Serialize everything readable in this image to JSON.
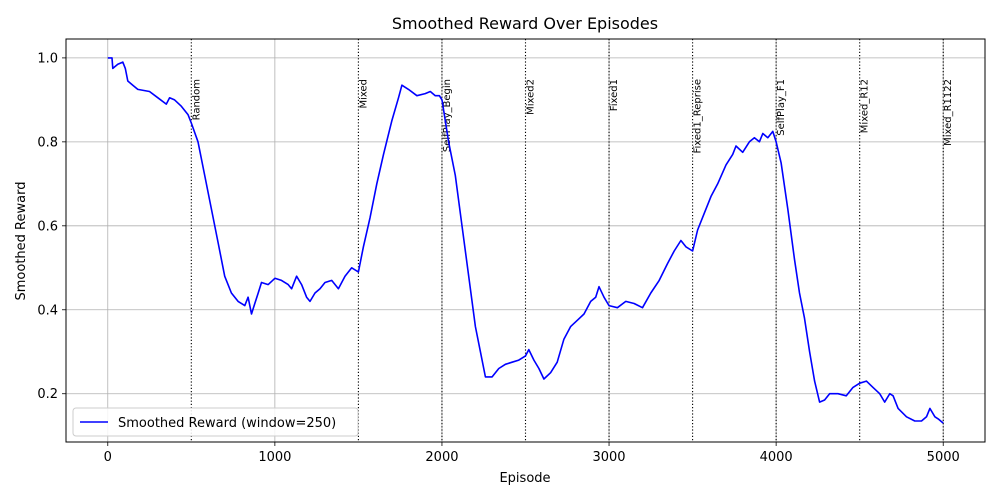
{
  "chart_data": {
    "type": "line",
    "title": "Smoothed Reward Over Episodes",
    "xlabel": "Episode",
    "ylabel": "Smoothed Reward",
    "xlim": [
      -250,
      5250
    ],
    "ylim": [
      0.085,
      1.045
    ],
    "xticks": [
      0,
      1000,
      2000,
      3000,
      4000,
      5000
    ],
    "xtick_labels": [
      "0",
      "1000",
      "2000",
      "3000",
      "4000",
      "5000"
    ],
    "yticks": [
      0.2,
      0.4,
      0.6,
      0.8,
      1.0
    ],
    "ytick_labels": [
      "0.2",
      "0.4",
      "0.6",
      "0.8",
      "1.0"
    ],
    "grid": true,
    "legend": {
      "position": "lower-left",
      "entries": [
        "Smoothed Reward (window=250)"
      ]
    },
    "series": [
      {
        "name": "Smoothed Reward (window=250)",
        "color": "#0000ff",
        "points": [
          [
            0,
            1.0
          ],
          [
            25,
            1.0
          ],
          [
            30,
            0.975
          ],
          [
            60,
            0.985
          ],
          [
            90,
            0.99
          ],
          [
            105,
            0.975
          ],
          [
            120,
            0.945
          ],
          [
            150,
            0.935
          ],
          [
            180,
            0.925
          ],
          [
            250,
            0.92
          ],
          [
            300,
            0.905
          ],
          [
            350,
            0.89
          ],
          [
            370,
            0.905
          ],
          [
            400,
            0.9
          ],
          [
            440,
            0.885
          ],
          [
            480,
            0.865
          ],
          [
            500,
            0.845
          ],
          [
            540,
            0.8
          ],
          [
            580,
            0.72
          ],
          [
            620,
            0.64
          ],
          [
            660,
            0.56
          ],
          [
            700,
            0.48
          ],
          [
            740,
            0.44
          ],
          [
            780,
            0.42
          ],
          [
            820,
            0.41
          ],
          [
            840,
            0.43
          ],
          [
            860,
            0.39
          ],
          [
            880,
            0.415
          ],
          [
            900,
            0.44
          ],
          [
            920,
            0.465
          ],
          [
            960,
            0.46
          ],
          [
            1000,
            0.475
          ],
          [
            1040,
            0.47
          ],
          [
            1080,
            0.46
          ],
          [
            1100,
            0.45
          ],
          [
            1130,
            0.48
          ],
          [
            1160,
            0.46
          ],
          [
            1190,
            0.43
          ],
          [
            1210,
            0.42
          ],
          [
            1240,
            0.44
          ],
          [
            1270,
            0.45
          ],
          [
            1300,
            0.465
          ],
          [
            1340,
            0.47
          ],
          [
            1380,
            0.45
          ],
          [
            1420,
            0.48
          ],
          [
            1460,
            0.5
          ],
          [
            1500,
            0.49
          ],
          [
            1530,
            0.55
          ],
          [
            1570,
            0.62
          ],
          [
            1610,
            0.7
          ],
          [
            1650,
            0.77
          ],
          [
            1700,
            0.85
          ],
          [
            1740,
            0.905
          ],
          [
            1760,
            0.935
          ],
          [
            1800,
            0.925
          ],
          [
            1850,
            0.91
          ],
          [
            1900,
            0.915
          ],
          [
            1930,
            0.92
          ],
          [
            1960,
            0.91
          ],
          [
            1985,
            0.91
          ],
          [
            2000,
            0.9
          ],
          [
            2040,
            0.8
          ],
          [
            2080,
            0.72
          ],
          [
            2120,
            0.6
          ],
          [
            2160,
            0.48
          ],
          [
            2200,
            0.36
          ],
          [
            2230,
            0.3
          ],
          [
            2260,
            0.24
          ],
          [
            2300,
            0.24
          ],
          [
            2340,
            0.26
          ],
          [
            2380,
            0.27
          ],
          [
            2420,
            0.275
          ],
          [
            2460,
            0.28
          ],
          [
            2500,
            0.29
          ],
          [
            2520,
            0.305
          ],
          [
            2550,
            0.28
          ],
          [
            2580,
            0.26
          ],
          [
            2610,
            0.235
          ],
          [
            2650,
            0.25
          ],
          [
            2690,
            0.275
          ],
          [
            2730,
            0.33
          ],
          [
            2770,
            0.36
          ],
          [
            2810,
            0.375
          ],
          [
            2850,
            0.39
          ],
          [
            2890,
            0.42
          ],
          [
            2920,
            0.43
          ],
          [
            2940,
            0.455
          ],
          [
            2970,
            0.43
          ],
          [
            3000,
            0.41
          ],
          [
            3050,
            0.405
          ],
          [
            3100,
            0.42
          ],
          [
            3150,
            0.415
          ],
          [
            3200,
            0.405
          ],
          [
            3250,
            0.44
          ],
          [
            3300,
            0.47
          ],
          [
            3350,
            0.51
          ],
          [
            3390,
            0.54
          ],
          [
            3430,
            0.565
          ],
          [
            3460,
            0.55
          ],
          [
            3500,
            0.54
          ],
          [
            3530,
            0.59
          ],
          [
            3570,
            0.63
          ],
          [
            3610,
            0.67
          ],
          [
            3650,
            0.7
          ],
          [
            3700,
            0.745
          ],
          [
            3740,
            0.77
          ],
          [
            3760,
            0.79
          ],
          [
            3800,
            0.775
          ],
          [
            3840,
            0.8
          ],
          [
            3870,
            0.81
          ],
          [
            3900,
            0.8
          ],
          [
            3920,
            0.82
          ],
          [
            3950,
            0.81
          ],
          [
            3980,
            0.825
          ],
          [
            4000,
            0.8
          ],
          [
            4030,
            0.75
          ],
          [
            4070,
            0.64
          ],
          [
            4110,
            0.52
          ],
          [
            4140,
            0.44
          ],
          [
            4170,
            0.38
          ],
          [
            4200,
            0.3
          ],
          [
            4230,
            0.23
          ],
          [
            4260,
            0.18
          ],
          [
            4290,
            0.185
          ],
          [
            4320,
            0.2
          ],
          [
            4370,
            0.2
          ],
          [
            4420,
            0.195
          ],
          [
            4460,
            0.215
          ],
          [
            4500,
            0.225
          ],
          [
            4540,
            0.23
          ],
          [
            4580,
            0.215
          ],
          [
            4620,
            0.2
          ],
          [
            4650,
            0.18
          ],
          [
            4680,
            0.2
          ],
          [
            4700,
            0.195
          ],
          [
            4730,
            0.165
          ],
          [
            4780,
            0.145
          ],
          [
            4830,
            0.135
          ],
          [
            4870,
            0.135
          ],
          [
            4900,
            0.145
          ],
          [
            4920,
            0.165
          ],
          [
            4950,
            0.145
          ],
          [
            4970,
            0.14
          ],
          [
            5000,
            0.13
          ]
        ]
      }
    ],
    "phases": [
      {
        "episode": 500,
        "label": "Random"
      },
      {
        "episode": 1500,
        "label": "Mixed"
      },
      {
        "episode": 2000,
        "label": "SelfPlay_Begin"
      },
      {
        "episode": 2500,
        "label": "Mixed2"
      },
      {
        "episode": 3000,
        "label": "Fixed1"
      },
      {
        "episode": 3500,
        "label": "Fixed1_Reprise"
      },
      {
        "episode": 4000,
        "label": "SelfPlay_F1"
      },
      {
        "episode": 4500,
        "label": "Mixed_R12"
      },
      {
        "episode": 5000,
        "label": "Mixed_R1122"
      }
    ]
  }
}
